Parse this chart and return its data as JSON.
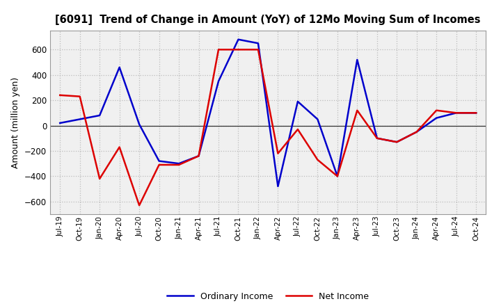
{
  "title": "[6091]  Trend of Change in Amount (YoY) of 12Mo Moving Sum of Incomes",
  "ylabel": "Amount (million yen)",
  "labels": [
    "Jul-19",
    "Oct-19",
    "Jan-20",
    "Apr-20",
    "Jul-20",
    "Oct-20",
    "Jan-21",
    "Apr-21",
    "Jul-21",
    "Oct-21",
    "Jan-22",
    "Apr-22",
    "Jul-22",
    "Oct-22",
    "Jan-23",
    "Apr-23",
    "Jul-23",
    "Oct-23",
    "Jan-24",
    "Apr-24",
    "Jul-24",
    "Oct-24"
  ],
  "ordinary_income": [
    20,
    50,
    80,
    460,
    10,
    -280,
    -300,
    -240,
    350,
    680,
    650,
    -480,
    190,
    50,
    -400,
    520,
    -100,
    -130,
    -50,
    60,
    100,
    100
  ],
  "net_income": [
    240,
    230,
    -420,
    -170,
    -630,
    -310,
    -310,
    -240,
    600,
    600,
    600,
    -220,
    -30,
    -270,
    -400,
    120,
    -100,
    -130,
    -50,
    120,
    100,
    100
  ],
  "ordinary_color": "#0000CC",
  "net_color": "#DD0000",
  "plot_bg_color": "#F0F0F0",
  "fig_bg_color": "#FFFFFF",
  "ylim": [
    -700,
    750
  ],
  "yticks": [
    -600,
    -400,
    -200,
    0,
    200,
    400,
    600
  ],
  "grid_color": "#BBBBBB",
  "legend_labels": [
    "Ordinary Income",
    "Net Income"
  ]
}
